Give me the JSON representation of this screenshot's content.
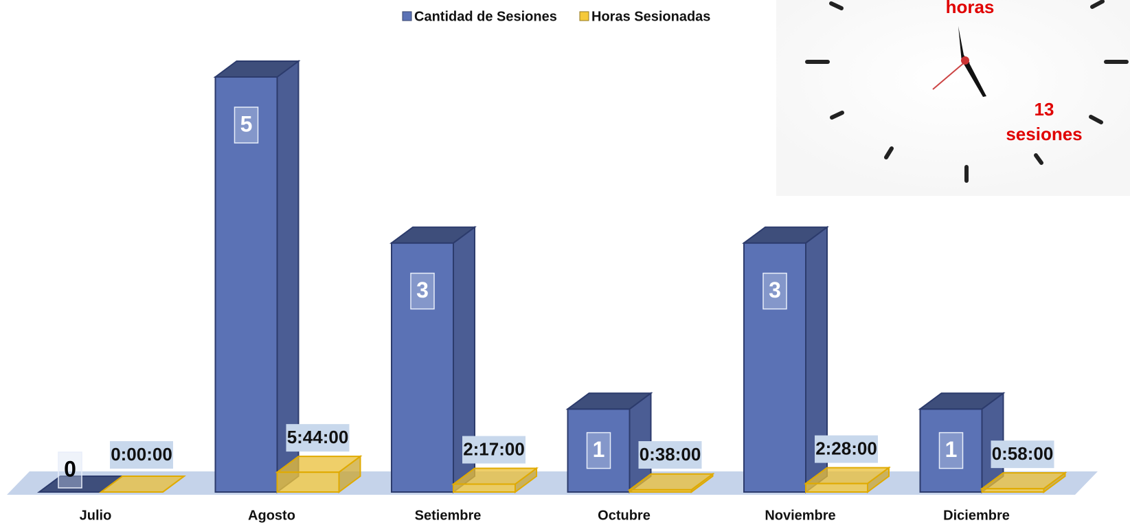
{
  "chart_data": {
    "type": "bar3d",
    "categories": [
      "Julio",
      "Agosto",
      "Setiembre",
      "Octubre",
      "Noviembre",
      "Diciembre"
    ],
    "series": [
      {
        "name": "Cantidad de Sesiones",
        "color": "#5b72b5",
        "values": [
          0,
          5,
          3,
          1,
          3,
          1
        ]
      },
      {
        "name": "Horas Sesionadas",
        "color": "#f5c93a",
        "values": [
          0,
          0.238889,
          0.095139,
          0.026389,
          0.102778,
          0.040278
        ],
        "value_labels": [
          "0:00:00",
          "5:44:00",
          "2:17:00",
          "0:38:00",
          "2:28:00",
          "0:58:00"
        ]
      }
    ],
    "ylim": [
      0,
      5
    ],
    "annotations": {
      "hours_label": "horas",
      "sessions_count": 13,
      "sessions_label": "sesiones"
    }
  }
}
